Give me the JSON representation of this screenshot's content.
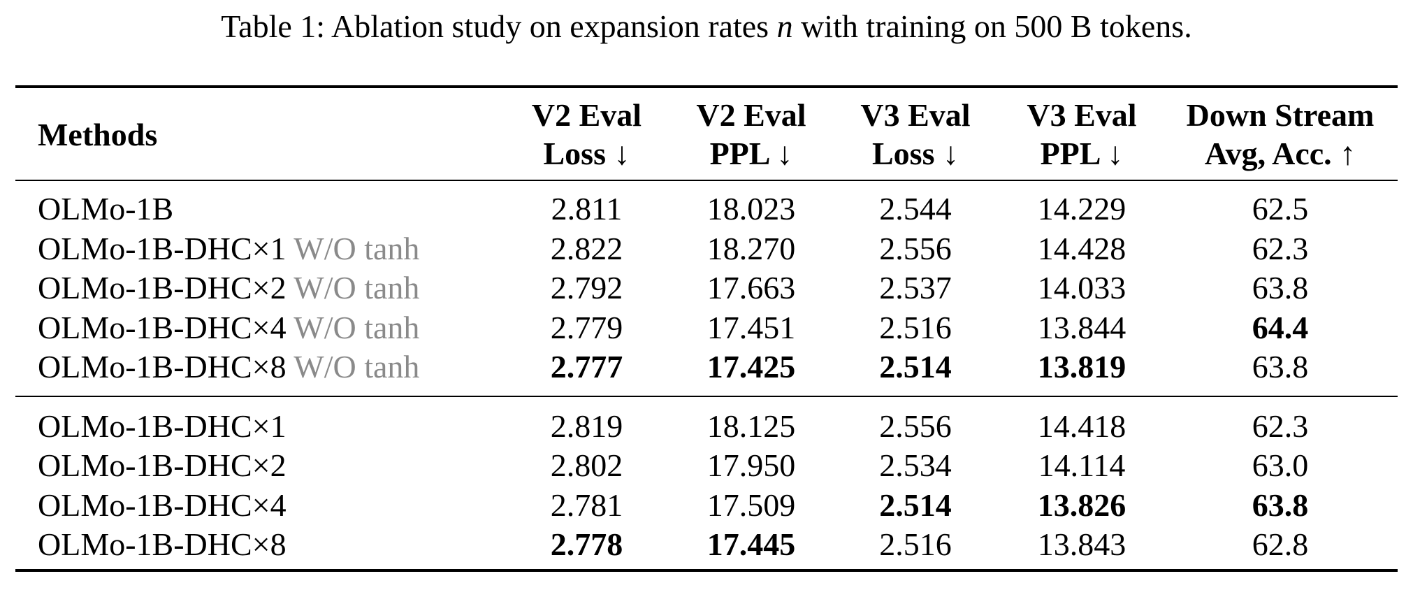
{
  "caption": {
    "prefix": "Table 1: Ablation study on expansion rates ",
    "math_symbol": "n",
    "suffix": " with training on 500 B tokens."
  },
  "table": {
    "columns": [
      {
        "key": "methods",
        "line1": "Methods",
        "line2": ""
      },
      {
        "key": "v2_eval_loss",
        "line1": "V2 Eval",
        "line2": "Loss ↓"
      },
      {
        "key": "v2_eval_ppl",
        "line1": "V2 Eval",
        "line2": "PPL ↓"
      },
      {
        "key": "v3_eval_loss",
        "line1": "V3 Eval",
        "line2": "Loss ↓"
      },
      {
        "key": "v3_eval_ppl",
        "line1": "V3 Eval",
        "line2": "PPL ↓"
      },
      {
        "key": "downstream_acc",
        "line1": "Down Stream",
        "line2": "Avg, Acc. ↑"
      }
    ],
    "groups": [
      {
        "rows": [
          {
            "method": "OLMo-1B",
            "suffix": "",
            "values": [
              "2.811",
              "18.023",
              "2.544",
              "14.229",
              "62.5"
            ],
            "bold": [
              false,
              false,
              false,
              false,
              false
            ]
          },
          {
            "method": "OLMo-1B-DHC×1",
            "suffix": "W/O tanh",
            "values": [
              "2.822",
              "18.270",
              "2.556",
              "14.428",
              "62.3"
            ],
            "bold": [
              false,
              false,
              false,
              false,
              false
            ]
          },
          {
            "method": "OLMo-1B-DHC×2",
            "suffix": "W/O tanh",
            "values": [
              "2.792",
              "17.663",
              "2.537",
              "14.033",
              "63.8"
            ],
            "bold": [
              false,
              false,
              false,
              false,
              false
            ]
          },
          {
            "method": "OLMo-1B-DHC×4",
            "suffix": "W/O tanh",
            "values": [
              "2.779",
              "17.451",
              "2.516",
              "13.844",
              "64.4"
            ],
            "bold": [
              false,
              false,
              false,
              false,
              true
            ]
          },
          {
            "method": "OLMo-1B-DHC×8",
            "suffix": "W/O tanh",
            "values": [
              "2.777",
              "17.425",
              "2.514",
              "13.819",
              "63.8"
            ],
            "bold": [
              true,
              true,
              true,
              true,
              false
            ]
          }
        ]
      },
      {
        "rows": [
          {
            "method": "OLMo-1B-DHC×1",
            "suffix": "",
            "values": [
              "2.819",
              "18.125",
              "2.556",
              "14.418",
              "62.3"
            ],
            "bold": [
              false,
              false,
              false,
              false,
              false
            ]
          },
          {
            "method": "OLMo-1B-DHC×2",
            "suffix": "",
            "values": [
              "2.802",
              "17.950",
              "2.534",
              "14.114",
              "63.0"
            ],
            "bold": [
              false,
              false,
              false,
              false,
              false
            ]
          },
          {
            "method": "OLMo-1B-DHC×4",
            "suffix": "",
            "values": [
              "2.781",
              "17.509",
              "2.514",
              "13.826",
              "63.8"
            ],
            "bold": [
              false,
              false,
              true,
              true,
              true
            ]
          },
          {
            "method": "OLMo-1B-DHC×8",
            "suffix": "",
            "values": [
              "2.778",
              "17.445",
              "2.516",
              "13.843",
              "62.8"
            ],
            "bold": [
              true,
              true,
              false,
              false,
              false
            ]
          }
        ]
      }
    ]
  }
}
